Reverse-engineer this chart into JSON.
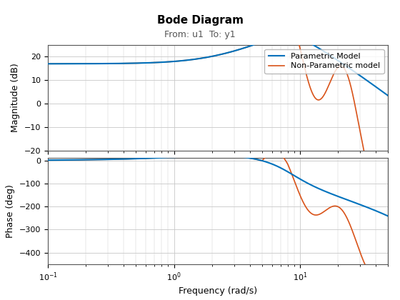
{
  "title": "Bode Diagram",
  "subtitle": "From: u1  To: y1",
  "xlabel": "Frequency (rad/s)",
  "ylabel_mag": "Magnitude (dB)",
  "ylabel_phase": "Phase (deg)",
  "freq_range": [
    0.1,
    50
  ],
  "mag_ylim": [
    -20,
    25
  ],
  "phase_ylim": [
    -450,
    10
  ],
  "mag_yticks": [
    -20,
    -10,
    0,
    10,
    20
  ],
  "phase_yticks": [
    -400,
    -300,
    -200,
    -100,
    0
  ],
  "legend_labels": [
    "Parametric Model",
    "Non-Parametric model"
  ],
  "color_parametric": "#0072BD",
  "color_nonparametric": "#D95319",
  "background_color": "#FFFFFF",
  "grid_color": "#C8C8C8",
  "title_fontsize": 11,
  "subtitle_fontsize": 9,
  "axis_fontsize": 9,
  "tick_fontsize": 8
}
